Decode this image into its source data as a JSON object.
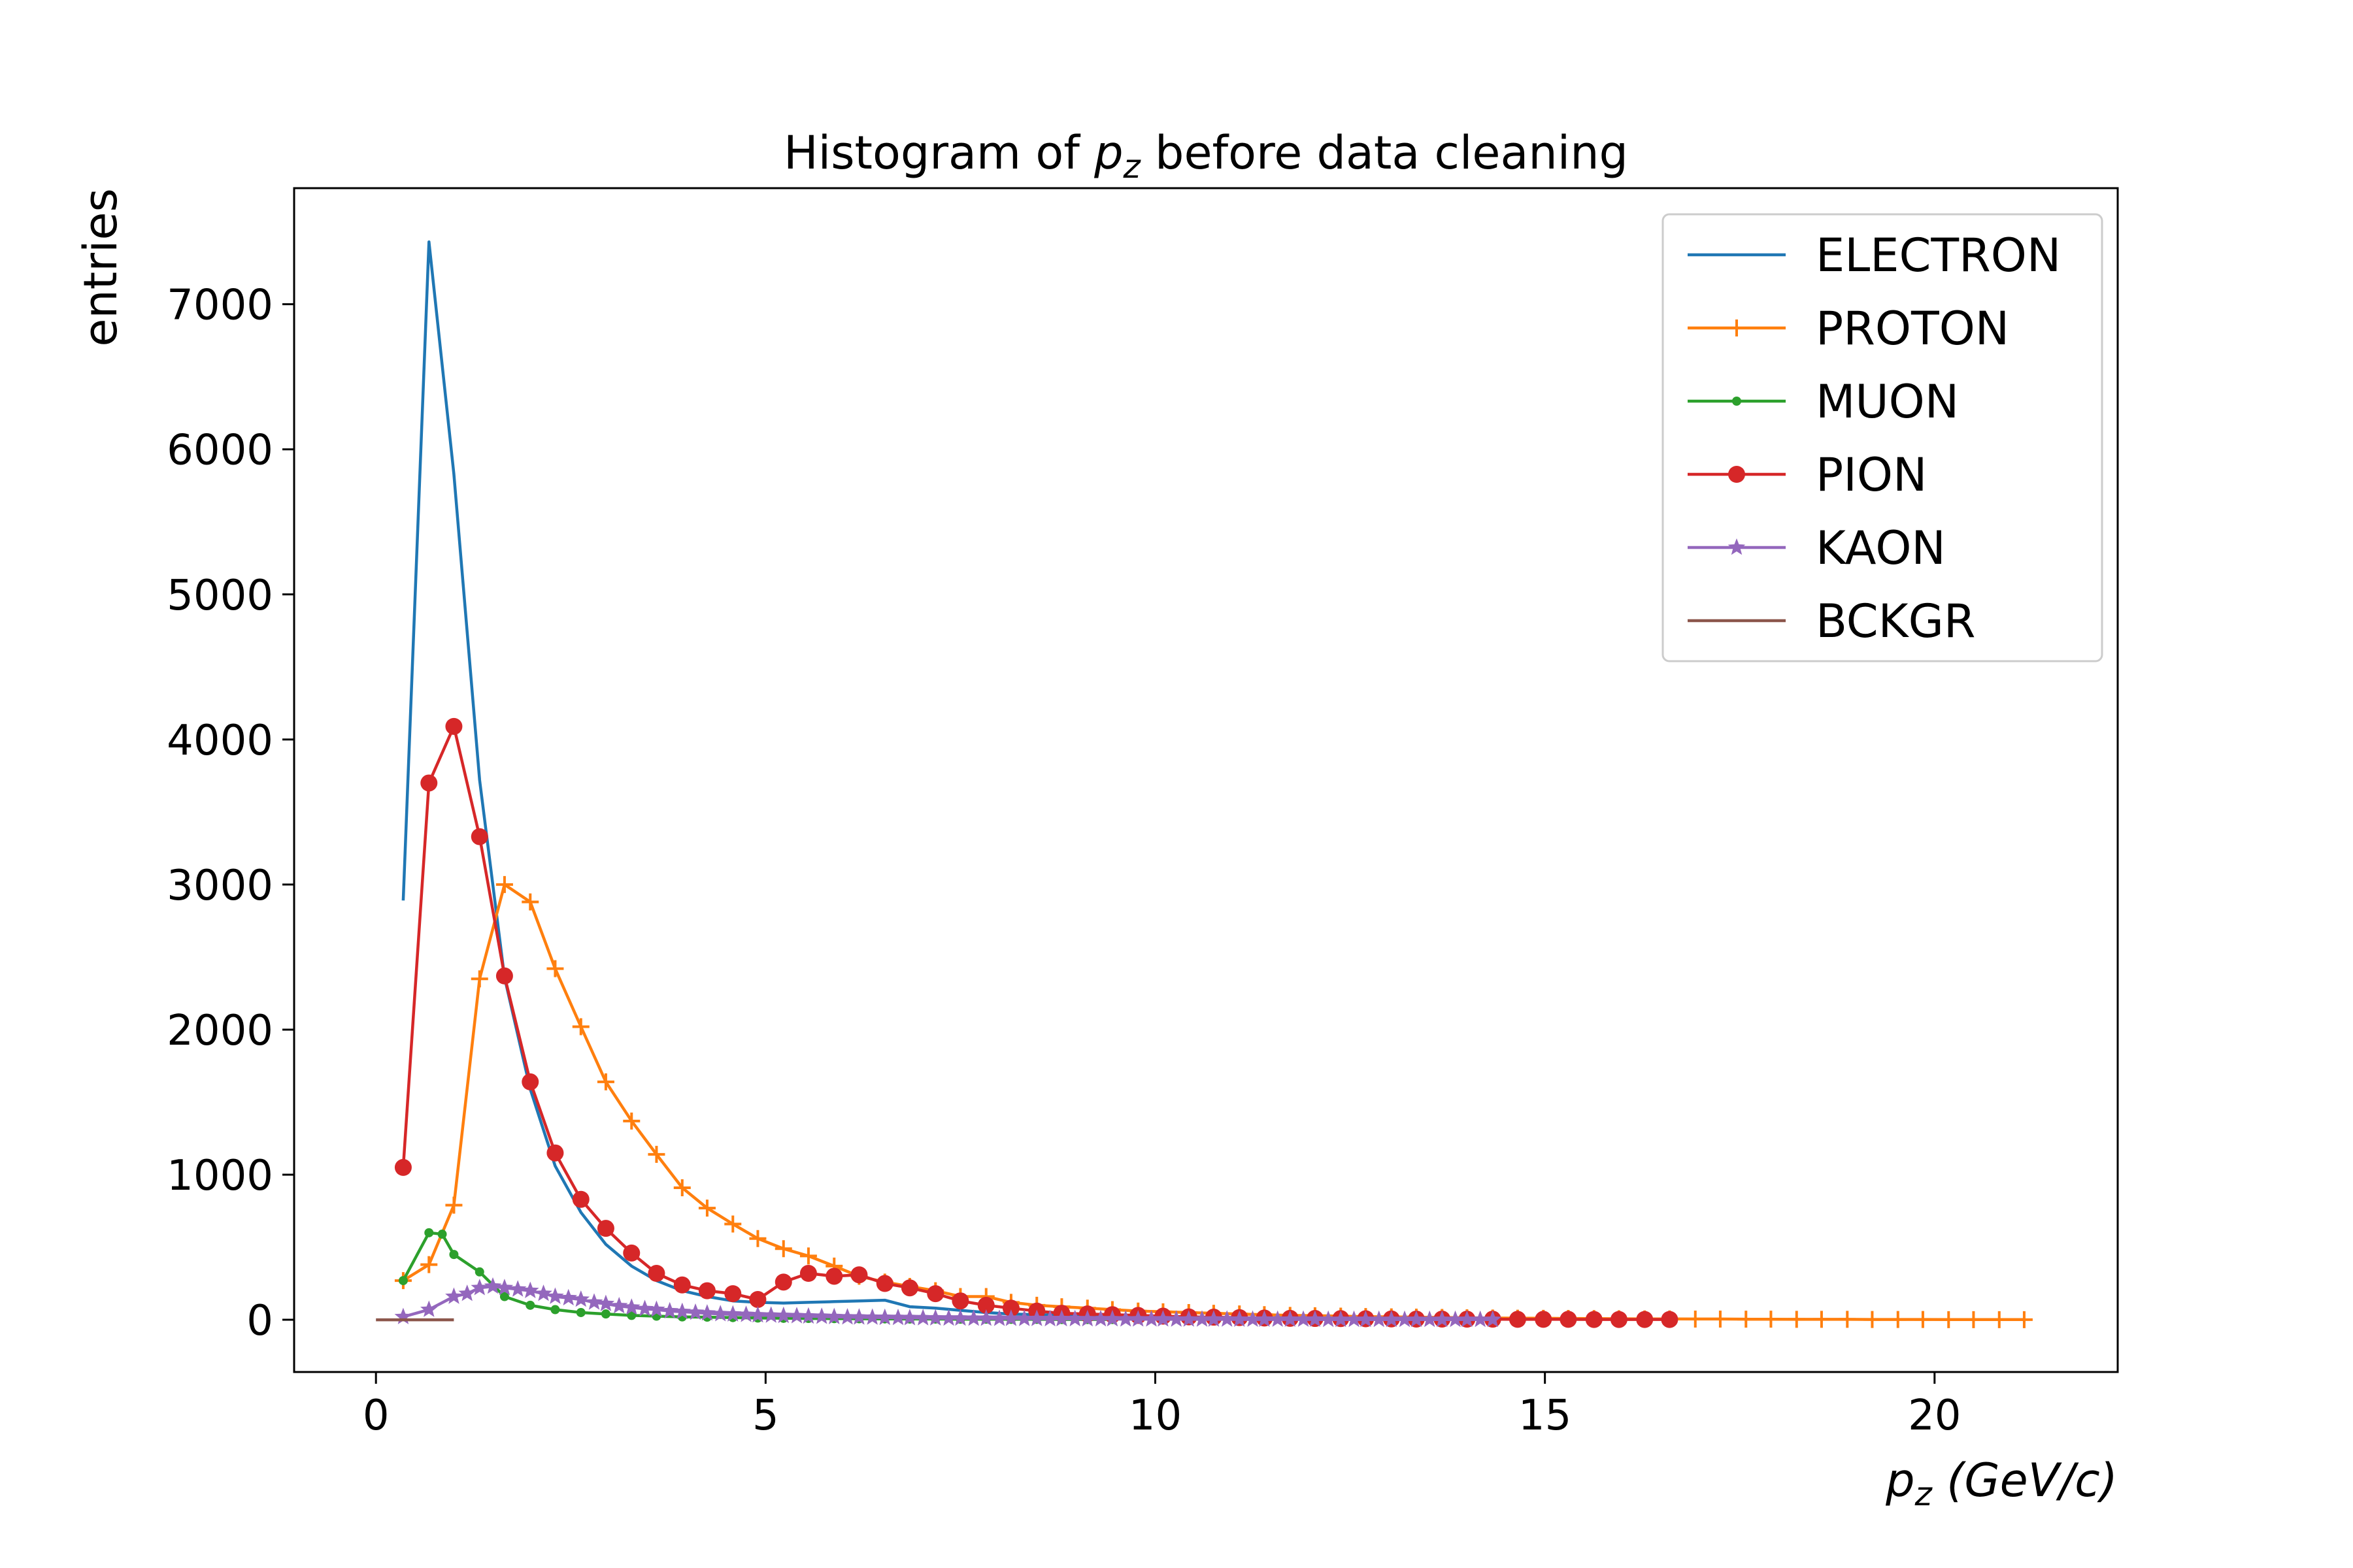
{
  "chart_data": {
    "type": "line",
    "title_parts": {
      "prefix": "Histogram of ",
      "var_main": "p",
      "var_sub": "z",
      "suffix": " before data cleaning"
    },
    "xlabel_parts": {
      "var_main": "p",
      "var_sub": "z",
      "unit": " (GeV/c)"
    },
    "ylabel": "entries",
    "xlim": [
      -1.05,
      22.35
    ],
    "ylim": [
      -360,
      7800
    ],
    "xticks": [
      0,
      5,
      10,
      15,
      20
    ],
    "xtick_labels": [
      "0",
      "5",
      "10",
      "15",
      "20"
    ],
    "yticks": [
      0,
      1000,
      2000,
      3000,
      4000,
      5000,
      6000,
      7000
    ],
    "ytick_labels": [
      "0",
      "1000",
      "2000",
      "3000",
      "4000",
      "5000",
      "6000",
      "7000"
    ],
    "grid": false,
    "legend_position": "top-right",
    "series": [
      {
        "name": "ELECTRON",
        "color": "#1f77b4",
        "marker": "none",
        "x": [
          0.35,
          0.68,
          1.0,
          1.33,
          1.65,
          1.98,
          2.3,
          2.63,
          2.95,
          3.28,
          3.6,
          3.93,
          4.25,
          4.58,
          4.9,
          5.23,
          5.55,
          5.88,
          6.2,
          6.53,
          6.85,
          7.18,
          7.5,
          7.83,
          8.15,
          8.5,
          9.0,
          9.5,
          10.0,
          10.5,
          11.0,
          11.5,
          12.0,
          12.5,
          13.0,
          13.5,
          14.0,
          14.3
        ],
        "y": [
          2890,
          7430,
          5830,
          3720,
          2360,
          1590,
          1060,
          740,
          520,
          370,
          270,
          200,
          160,
          130,
          120,
          115,
          120,
          125,
          130,
          135,
          90,
          80,
          65,
          50,
          40,
          35,
          28,
          22,
          18,
          14,
          11,
          9,
          7,
          6,
          5,
          4,
          3,
          2
        ]
      },
      {
        "name": "PROTON",
        "color": "#ff7f0e",
        "marker": "plus",
        "x": [
          0.35,
          0.68,
          1.0,
          1.33,
          1.65,
          1.98,
          2.3,
          2.63,
          2.95,
          3.28,
          3.6,
          3.93,
          4.25,
          4.58,
          4.9,
          5.23,
          5.55,
          5.88,
          6.2,
          6.53,
          6.85,
          7.18,
          7.5,
          7.83,
          8.15,
          8.48,
          8.8,
          9.13,
          9.45,
          9.78,
          10.1,
          10.43,
          10.75,
          11.08,
          11.4,
          11.73,
          12.05,
          12.38,
          12.7,
          13.03,
          13.35,
          13.68,
          14.0,
          14.33,
          14.65,
          14.98,
          15.3,
          15.63,
          15.95,
          16.28,
          16.6,
          16.93,
          17.25,
          17.58,
          17.9,
          18.23,
          18.55,
          18.88,
          19.2,
          19.53,
          19.85,
          20.18,
          20.5,
          20.83,
          21.15
        ],
        "y": [
          270,
          380,
          790,
          2350,
          3000,
          2880,
          2420,
          2020,
          1640,
          1370,
          1140,
          910,
          770,
          660,
          560,
          490,
          440,
          370,
          300,
          260,
          230,
          200,
          160,
          160,
          120,
          100,
          90,
          80,
          70,
          60,
          55,
          50,
          45,
          40,
          35,
          30,
          28,
          25,
          22,
          20,
          18,
          16,
          14,
          12,
          11,
          10,
          9,
          8,
          7,
          6,
          6,
          5,
          5,
          4,
          4,
          3,
          3,
          3,
          2,
          2,
          2,
          1,
          1,
          1,
          1
        ]
      },
      {
        "name": "MUON",
        "color": "#2ca02c",
        "marker": "dot",
        "x": [
          0.35,
          0.68,
          0.85,
          1.0,
          1.33,
          1.65,
          1.98,
          2.3,
          2.63,
          2.95,
          3.28,
          3.6,
          3.93,
          4.25,
          4.58,
          4.9,
          5.23,
          5.55,
          5.88,
          6.2,
          6.53,
          6.85,
          7.18,
          7.5,
          7.83,
          8.15,
          8.48,
          8.8,
          9.13,
          9.45
        ],
        "y": [
          270,
          600,
          590,
          450,
          330,
          160,
          100,
          70,
          50,
          40,
          30,
          25,
          20,
          18,
          15,
          12,
          10,
          9,
          8,
          7,
          6,
          5,
          5,
          4,
          4,
          3,
          3,
          2,
          2,
          2
        ]
      },
      {
        "name": "PION",
        "color": "#d62728",
        "marker": "circle",
        "x": [
          0.35,
          0.68,
          1.0,
          1.33,
          1.65,
          1.98,
          2.3,
          2.63,
          2.95,
          3.28,
          3.6,
          3.93,
          4.25,
          4.58,
          4.9,
          5.23,
          5.55,
          5.88,
          6.2,
          6.53,
          6.85,
          7.18,
          7.5,
          7.83,
          8.15,
          8.48,
          8.8,
          9.13,
          9.45,
          9.78,
          10.1,
          10.43,
          10.75,
          11.08,
          11.4,
          11.73,
          12.05,
          12.38,
          12.7,
          13.03,
          13.35,
          13.68,
          14.0,
          14.33,
          14.65,
          14.98,
          15.3,
          15.63,
          15.95,
          16.28,
          16.6
        ],
        "y": [
          1050,
          3700,
          4090,
          3330,
          2370,
          1640,
          1150,
          830,
          630,
          460,
          320,
          240,
          200,
          180,
          140,
          260,
          320,
          300,
          310,
          250,
          220,
          180,
          130,
          100,
          80,
          60,
          45,
          40,
          35,
          30,
          25,
          20,
          18,
          15,
          12,
          10,
          9,
          8,
          7,
          6,
          5,
          5,
          4,
          4,
          3,
          3,
          3,
          2,
          2,
          2,
          2
        ]
      },
      {
        "name": "KAON",
        "color": "#9467bd",
        "marker": "star",
        "x": [
          0.35,
          0.68,
          1.0,
          1.17,
          1.33,
          1.5,
          1.65,
          1.82,
          1.98,
          2.15,
          2.3,
          2.47,
          2.63,
          2.8,
          2.95,
          3.12,
          3.28,
          3.45,
          3.6,
          3.77,
          3.93,
          4.1,
          4.25,
          4.42,
          4.58,
          4.75,
          4.9,
          5.07,
          5.23,
          5.4,
          5.55,
          5.72,
          5.88,
          6.05,
          6.2,
          6.37,
          6.53,
          6.7,
          6.85,
          7.02,
          7.18,
          7.35,
          7.5,
          7.67,
          7.83,
          8.0,
          8.15,
          8.32,
          8.48,
          8.65,
          8.8,
          8.97,
          9.13,
          9.3,
          9.45,
          9.62,
          9.78,
          9.95,
          10.1,
          10.27,
          10.43,
          10.6,
          10.75,
          10.92,
          11.08,
          11.25,
          11.4,
          11.57,
          11.73,
          11.9,
          12.05,
          12.22,
          12.38,
          12.55,
          12.7,
          12.87,
          13.03,
          13.2,
          13.35,
          13.52,
          13.68,
          13.85,
          14.0,
          14.17,
          14.33
        ],
        "y": [
          20,
          70,
          160,
          180,
          220,
          230,
          220,
          210,
          200,
          180,
          160,
          150,
          140,
          120,
          110,
          95,
          85,
          75,
          70,
          60,
          55,
          50,
          45,
          40,
          38,
          35,
          32,
          30,
          28,
          26,
          24,
          22,
          20,
          18,
          17,
          16,
          15,
          14,
          13,
          12,
          11,
          10,
          10,
          9,
          9,
          8,
          8,
          7,
          7,
          6,
          6,
          6,
          5,
          5,
          5,
          4,
          4,
          4,
          4,
          3,
          3,
          3,
          3,
          3,
          2,
          2,
          2,
          2,
          2,
          2,
          2,
          1,
          1,
          1,
          1,
          1,
          1,
          1,
          1,
          1,
          1,
          1,
          1,
          1,
          1
        ]
      },
      {
        "name": "BCKGR",
        "color": "#8c564b",
        "marker": "none",
        "x": [
          0.0,
          1.0
        ],
        "y": [
          0,
          0
        ]
      }
    ]
  }
}
